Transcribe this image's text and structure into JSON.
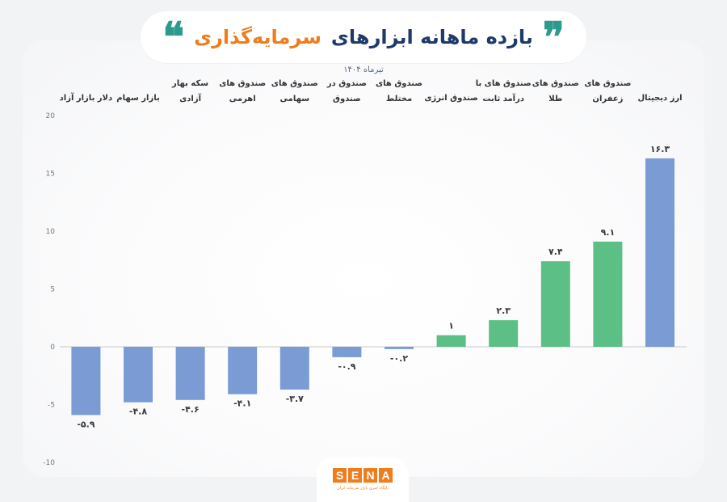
{
  "header": {
    "quote_open": "❞",
    "quote_close": "❝",
    "title_main": "بازده ماهانه ابزارهای",
    "title_accent": "سرمایه‌گذاری",
    "subtitle": "تیرماه ۱۴۰۴",
    "quote_color_open": "#2c9a8c",
    "quote_color_close": "#2c9a8c"
  },
  "colors": {
    "positive_bar": "#5cbf85",
    "negative_bar": "#7a9bd4",
    "extreme_bar": "#7a9bd4",
    "title_main": "#1f3a68",
    "title_accent": "#f07d1c",
    "brand": "#f07d1c"
  },
  "chart_data": {
    "type": "bar",
    "title": "",
    "xlabel": "",
    "ylabel": "",
    "ylim": [
      -10,
      20
    ],
    "yticks": [
      -10,
      -5,
      0,
      5,
      10,
      15,
      20
    ],
    "ytick_labels": [
      "-10",
      "-5",
      "0",
      "5",
      "10",
      "15",
      "20"
    ],
    "grid": false,
    "categories": [
      [
        "ارز دیجیتال"
      ],
      [
        "صندوق های",
        "زعفران"
      ],
      [
        "صندوق های",
        "طلا"
      ],
      [
        "صندوق های با",
        "درآمد ثابت"
      ],
      [
        "صندوق انرژی"
      ],
      [
        "صندوق های",
        "مختلط"
      ],
      [
        "صندوق در",
        "صندوق"
      ],
      [
        "صندوق های",
        "سهامی"
      ],
      [
        "صندوق های",
        "اهرمی"
      ],
      [
        "سکه بهار",
        "آزادی"
      ],
      [
        "بازار سهام"
      ],
      [
        "دلار بازار آزاد"
      ]
    ],
    "values": [
      16.3,
      9.1,
      7.4,
      2.3,
      1,
      -0.2,
      -0.9,
      -3.7,
      -4.1,
      -4.6,
      -4.8,
      -5.9
    ],
    "value_labels": [
      "۱۶.۳",
      "۹.۱",
      "۷.۴",
      "۲.۳",
      "۱",
      "-۰.۲",
      "-۰.۹",
      "-۳.۷",
      "-۴.۱",
      "-۴.۶",
      "-۴.۸",
      "-۵.۹"
    ],
    "bar_colors": [
      "#7a9bd4",
      "#5cbf85",
      "#5cbf85",
      "#5cbf85",
      "#5cbf85",
      "#7a9bd4",
      "#7a9bd4",
      "#7a9bd4",
      "#7a9bd4",
      "#7a9bd4",
      "#7a9bd4",
      "#7a9bd4"
    ]
  },
  "logo": {
    "letters": [
      "S",
      "E",
      "N",
      "A"
    ],
    "tagline": "پایگاه خبری بازار سرمایه ایران"
  }
}
